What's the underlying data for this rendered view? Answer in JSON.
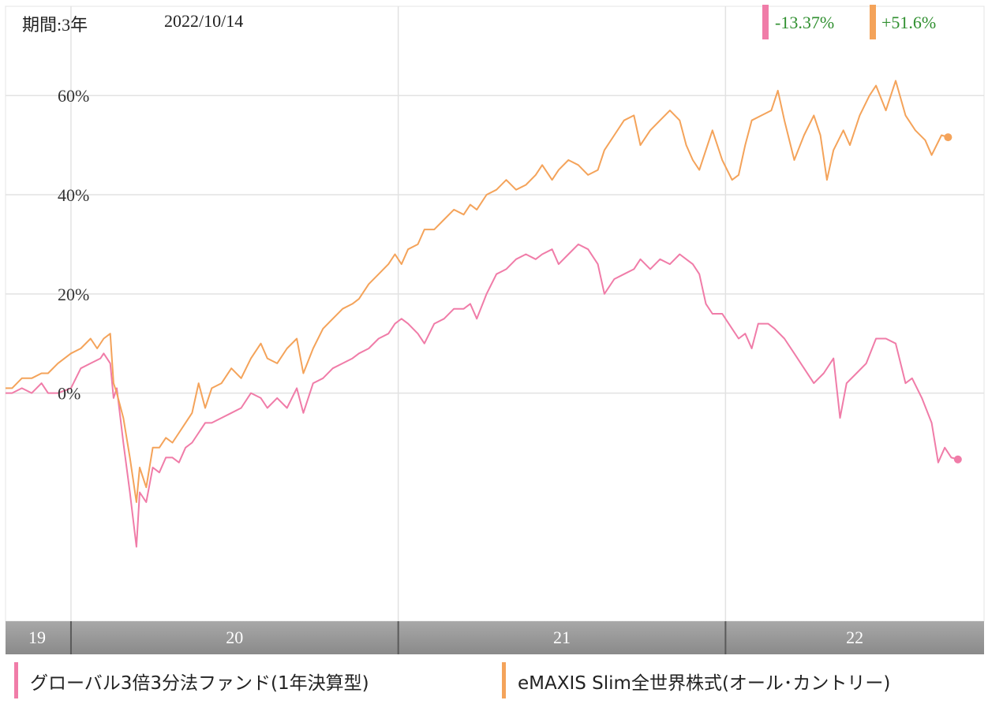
{
  "header": {
    "period": "期間:3年",
    "date": "2022/10/14"
  },
  "returns": [
    {
      "value": "-13.37%",
      "color": "#f07ca8"
    },
    {
      "value": "+51.6%",
      "color": "#f4a35a"
    }
  ],
  "legend": [
    {
      "label": "グローバル3倍3分法ファンド(1年決算型)",
      "color": "#f07ca8"
    },
    {
      "label": "eMAXIS Slim全世界株式(オール･カントリー)",
      "color": "#f4a35a"
    }
  ],
  "chart_data": {
    "type": "line",
    "y_ticks": [
      "60%",
      "40%",
      "20%",
      "0%"
    ],
    "y_tick_values": [
      60,
      40,
      20,
      0
    ],
    "ylim": [
      -46,
      78
    ],
    "x_ticks": [
      "19",
      "20",
      "21",
      "22"
    ],
    "xlim": [
      2019.8,
      2022.79
    ],
    "x_boundaries": [
      2020.0,
      2021.0,
      2022.0
    ],
    "grid": true,
    "series": [
      {
        "name": "グローバル3倍3分法ファンド(1年決算型)",
        "color": "#f07ca8",
        "points": [
          [
            2019.8,
            0
          ],
          [
            2019.82,
            0
          ],
          [
            2019.85,
            1
          ],
          [
            2019.88,
            0
          ],
          [
            2019.91,
            2
          ],
          [
            2019.93,
            0
          ],
          [
            2019.96,
            0
          ],
          [
            2020.0,
            1
          ],
          [
            2020.03,
            5
          ],
          [
            2020.06,
            6
          ],
          [
            2020.09,
            7
          ],
          [
            2020.1,
            8
          ],
          [
            2020.12,
            6
          ],
          [
            2020.13,
            -1
          ],
          [
            2020.14,
            1
          ],
          [
            2020.16,
            -10
          ],
          [
            2020.18,
            -20
          ],
          [
            2020.2,
            -31
          ],
          [
            2020.21,
            -20
          ],
          [
            2020.23,
            -22
          ],
          [
            2020.25,
            -15
          ],
          [
            2020.27,
            -16
          ],
          [
            2020.29,
            -13
          ],
          [
            2020.31,
            -13
          ],
          [
            2020.33,
            -14
          ],
          [
            2020.35,
            -11
          ],
          [
            2020.37,
            -10
          ],
          [
            2020.39,
            -8
          ],
          [
            2020.41,
            -6
          ],
          [
            2020.43,
            -6
          ],
          [
            2020.46,
            -5
          ],
          [
            2020.49,
            -4
          ],
          [
            2020.52,
            -3
          ],
          [
            2020.55,
            0
          ],
          [
            2020.58,
            -1
          ],
          [
            2020.6,
            -3
          ],
          [
            2020.63,
            -1
          ],
          [
            2020.66,
            -3
          ],
          [
            2020.69,
            1
          ],
          [
            2020.71,
            -4
          ],
          [
            2020.74,
            2
          ],
          [
            2020.77,
            3
          ],
          [
            2020.8,
            5
          ],
          [
            2020.83,
            6
          ],
          [
            2020.86,
            7
          ],
          [
            2020.88,
            8
          ],
          [
            2020.91,
            9
          ],
          [
            2020.94,
            11
          ],
          [
            2020.97,
            12
          ],
          [
            2020.99,
            14
          ],
          [
            2021.01,
            15
          ],
          [
            2021.03,
            14
          ],
          [
            2021.06,
            12
          ],
          [
            2021.08,
            10
          ],
          [
            2021.11,
            14
          ],
          [
            2021.14,
            15
          ],
          [
            2021.17,
            17
          ],
          [
            2021.2,
            17
          ],
          [
            2021.22,
            18
          ],
          [
            2021.24,
            15
          ],
          [
            2021.27,
            20
          ],
          [
            2021.3,
            24
          ],
          [
            2021.33,
            25
          ],
          [
            2021.36,
            27
          ],
          [
            2021.39,
            28
          ],
          [
            2021.42,
            27
          ],
          [
            2021.44,
            28
          ],
          [
            2021.47,
            29
          ],
          [
            2021.49,
            26
          ],
          [
            2021.52,
            28
          ],
          [
            2021.55,
            30
          ],
          [
            2021.58,
            29
          ],
          [
            2021.61,
            26
          ],
          [
            2021.63,
            20
          ],
          [
            2021.66,
            23
          ],
          [
            2021.69,
            24
          ],
          [
            2021.72,
            25
          ],
          [
            2021.74,
            27
          ],
          [
            2021.77,
            25
          ],
          [
            2021.8,
            27
          ],
          [
            2021.83,
            26
          ],
          [
            2021.86,
            28
          ],
          [
            2021.88,
            27
          ],
          [
            2021.9,
            26
          ],
          [
            2021.92,
            24
          ],
          [
            2021.94,
            18
          ],
          [
            2021.96,
            16
          ],
          [
            2021.99,
            16
          ],
          [
            2022.02,
            13
          ],
          [
            2022.04,
            11
          ],
          [
            2022.06,
            12
          ],
          [
            2022.08,
            9
          ],
          [
            2022.1,
            14
          ],
          [
            2022.13,
            14
          ],
          [
            2022.15,
            13
          ],
          [
            2022.18,
            11
          ],
          [
            2022.21,
            8
          ],
          [
            2022.24,
            5
          ],
          [
            2022.27,
            2
          ],
          [
            2022.3,
            4
          ],
          [
            2022.33,
            7
          ],
          [
            2022.35,
            -5
          ],
          [
            2022.37,
            2
          ],
          [
            2022.4,
            4
          ],
          [
            2022.43,
            6
          ],
          [
            2022.46,
            11
          ],
          [
            2022.49,
            11
          ],
          [
            2022.52,
            10
          ],
          [
            2022.55,
            2
          ],
          [
            2022.57,
            3
          ],
          [
            2022.6,
            -1
          ],
          [
            2022.63,
            -6
          ],
          [
            2022.65,
            -14
          ],
          [
            2022.67,
            -11
          ],
          [
            2022.69,
            -13
          ],
          [
            2022.71,
            -13.37
          ]
        ]
      },
      {
        "name": "eMAXIS Slim全世界株式(オール･カントリー)",
        "color": "#f4a35a",
        "points": [
          [
            2019.8,
            1
          ],
          [
            2019.82,
            1
          ],
          [
            2019.85,
            3
          ],
          [
            2019.88,
            3
          ],
          [
            2019.91,
            4
          ],
          [
            2019.93,
            4
          ],
          [
            2019.96,
            6
          ],
          [
            2020.0,
            8
          ],
          [
            2020.03,
            9
          ],
          [
            2020.06,
            11
          ],
          [
            2020.08,
            9
          ],
          [
            2020.1,
            11
          ],
          [
            2020.12,
            12
          ],
          [
            2020.13,
            2
          ],
          [
            2020.14,
            0
          ],
          [
            2020.16,
            -5
          ],
          [
            2020.18,
            -13
          ],
          [
            2020.2,
            -22
          ],
          [
            2020.21,
            -15
          ],
          [
            2020.23,
            -19
          ],
          [
            2020.25,
            -11
          ],
          [
            2020.27,
            -11
          ],
          [
            2020.29,
            -9
          ],
          [
            2020.31,
            -10
          ],
          [
            2020.33,
            -8
          ],
          [
            2020.35,
            -6
          ],
          [
            2020.37,
            -4
          ],
          [
            2020.39,
            2
          ],
          [
            2020.41,
            -3
          ],
          [
            2020.43,
            1
          ],
          [
            2020.46,
            2
          ],
          [
            2020.49,
            5
          ],
          [
            2020.52,
            3
          ],
          [
            2020.55,
            7
          ],
          [
            2020.58,
            10
          ],
          [
            2020.6,
            7
          ],
          [
            2020.63,
            6
          ],
          [
            2020.66,
            9
          ],
          [
            2020.69,
            11
          ],
          [
            2020.71,
            4
          ],
          [
            2020.74,
            9
          ],
          [
            2020.77,
            13
          ],
          [
            2020.8,
            15
          ],
          [
            2020.83,
            17
          ],
          [
            2020.86,
            18
          ],
          [
            2020.88,
            19
          ],
          [
            2020.91,
            22
          ],
          [
            2020.94,
            24
          ],
          [
            2020.97,
            26
          ],
          [
            2020.99,
            28
          ],
          [
            2021.01,
            26
          ],
          [
            2021.03,
            29
          ],
          [
            2021.06,
            30
          ],
          [
            2021.08,
            33
          ],
          [
            2021.11,
            33
          ],
          [
            2021.14,
            35
          ],
          [
            2021.17,
            37
          ],
          [
            2021.2,
            36
          ],
          [
            2021.22,
            38
          ],
          [
            2021.24,
            37
          ],
          [
            2021.27,
            40
          ],
          [
            2021.3,
            41
          ],
          [
            2021.33,
            43
          ],
          [
            2021.36,
            41
          ],
          [
            2021.39,
            42
          ],
          [
            2021.42,
            44
          ],
          [
            2021.44,
            46
          ],
          [
            2021.47,
            43
          ],
          [
            2021.49,
            45
          ],
          [
            2021.52,
            47
          ],
          [
            2021.55,
            46
          ],
          [
            2021.58,
            44
          ],
          [
            2021.61,
            45
          ],
          [
            2021.63,
            49
          ],
          [
            2021.66,
            52
          ],
          [
            2021.69,
            55
          ],
          [
            2021.72,
            56
          ],
          [
            2021.74,
            50
          ],
          [
            2021.77,
            53
          ],
          [
            2021.8,
            55
          ],
          [
            2021.83,
            57
          ],
          [
            2021.86,
            55
          ],
          [
            2021.88,
            50
          ],
          [
            2021.9,
            47
          ],
          [
            2021.92,
            45
          ],
          [
            2021.94,
            49
          ],
          [
            2021.96,
            53
          ],
          [
            2021.99,
            47
          ],
          [
            2022.02,
            43
          ],
          [
            2022.04,
            44
          ],
          [
            2022.06,
            50
          ],
          [
            2022.08,
            55
          ],
          [
            2022.11,
            56
          ],
          [
            2022.14,
            57
          ],
          [
            2022.16,
            61
          ],
          [
            2022.18,
            55
          ],
          [
            2022.21,
            47
          ],
          [
            2022.24,
            52
          ],
          [
            2022.27,
            56
          ],
          [
            2022.29,
            52
          ],
          [
            2022.31,
            43
          ],
          [
            2022.33,
            49
          ],
          [
            2022.36,
            53
          ],
          [
            2022.38,
            50
          ],
          [
            2022.41,
            56
          ],
          [
            2022.44,
            60
          ],
          [
            2022.46,
            62
          ],
          [
            2022.49,
            57
          ],
          [
            2022.52,
            63
          ],
          [
            2022.55,
            56
          ],
          [
            2022.58,
            53
          ],
          [
            2022.61,
            51
          ],
          [
            2022.63,
            48
          ],
          [
            2022.66,
            52
          ],
          [
            2022.68,
            51.6
          ]
        ]
      }
    ]
  }
}
